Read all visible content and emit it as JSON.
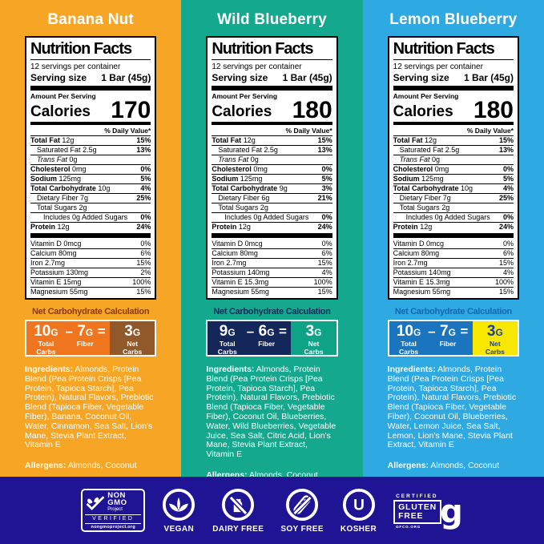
{
  "panels": [
    {
      "flavor": "Banana Nut",
      "colors": {
        "bg": "#F7A525",
        "nc_title": "#8A3A10",
        "nc_left": "#F0751F",
        "nc_right": "#91582A",
        "nc_right_text": "#FFFFFF"
      },
      "nutrition": {
        "title": "Nutrition Facts",
        "servings": "12 servings per container",
        "serving_size_label": "Serving size",
        "serving_size": "1 Bar (45g)",
        "amount_label": "Amount Per Serving",
        "calories_label": "Calories",
        "calories": "170",
        "daily_value_label": "% Daily Value*",
        "rows": [
          {
            "name": "Total Fat",
            "amount": "12g",
            "dv": "15%",
            "style": "bold"
          },
          {
            "name": "Saturated Fat",
            "amount": "2.5g",
            "dv": "13%",
            "style": "indent1"
          },
          {
            "name": "Trans Fat",
            "amount": "0g",
            "dv": "",
            "style": "indent1 italic"
          },
          {
            "name": "Cholesterol",
            "amount": "0mg",
            "dv": "0%",
            "style": "bold"
          },
          {
            "name": "Sodium",
            "amount": "125mg",
            "dv": "5%",
            "style": "bold"
          },
          {
            "name": "Total Carbohydrate",
            "amount": "10g",
            "dv": "4%",
            "style": "bold"
          },
          {
            "name": "Dietary Fiber",
            "amount": "7g",
            "dv": "25%",
            "style": "indent1"
          },
          {
            "name": "Total Sugars",
            "amount": "2g",
            "dv": "",
            "style": "indent1"
          },
          {
            "name": "Includes 0g Added Sugars",
            "amount": "",
            "dv": "0%",
            "style": "indent2"
          },
          {
            "name": "Protein",
            "amount": "12g",
            "dv": "24%",
            "style": "bold"
          }
        ],
        "micros": [
          {
            "name": "Vitamin D 0mcg",
            "dv": "0%"
          },
          {
            "name": "Calcium 80mg",
            "dv": "6%"
          },
          {
            "name": "Iron 2.7mg",
            "dv": "15%"
          },
          {
            "name": "Potassium 130mg",
            "dv": "2%"
          },
          {
            "name": "Vitamin E 15mg",
            "dv": "100%"
          },
          {
            "name": "Magnesium 55mg",
            "dv": "15%"
          }
        ]
      },
      "net_carbs": {
        "title": "Net Carbohydrate Calculation",
        "total_value": "10",
        "total_unit": "G",
        "total_label": "Total Carbs",
        "minus": "–",
        "fiber_value": "7",
        "fiber_unit": "G",
        "fiber_label": "Fiber",
        "equals": "=",
        "net_value": "3",
        "net_unit": "G",
        "net_label": "Net Carbs"
      },
      "ingredients_label": "Ingredients:",
      "ingredients": "Almonds, Protein Blend (Pea Protein Crisps [Pea Protein, Tapioca Starch], Pea Protein), Natural Flavors, Prebiotic Blend (Tapioca Fiber, Vegetable Fiber), Banana, Coconut Oil, Water, Cinnamon, Sea Salt, Lion's Mane, Stevia Plant Extract, Vitamin E",
      "allergens_label": "Allergens:",
      "allergens": "Almonds, Coconut"
    },
    {
      "flavor": "Wild Blueberry",
      "colors": {
        "bg": "#14A98E",
        "nc_title": "#13275B",
        "nc_left": "#13275B",
        "nc_right": "#0EA287",
        "nc_right_text": "#FFFFFF"
      },
      "nutrition": {
        "title": "Nutrition Facts",
        "servings": "12 servings per container",
        "serving_size_label": "Serving size",
        "serving_size": "1 Bar (45g)",
        "amount_label": "Amount Per Serving",
        "calories_label": "Calories",
        "calories": "180",
        "daily_value_label": "% Daily Value*",
        "rows": [
          {
            "name": "Total Fat",
            "amount": "12g",
            "dv": "15%",
            "style": "bold"
          },
          {
            "name": "Saturated Fat",
            "amount": "2.5g",
            "dv": "13%",
            "style": "indent1"
          },
          {
            "name": "Trans Fat",
            "amount": "0g",
            "dv": "",
            "style": "indent1 italic"
          },
          {
            "name": "Cholesterol",
            "amount": "0mg",
            "dv": "0%",
            "style": "bold"
          },
          {
            "name": "Sodium",
            "amount": "125mg",
            "dv": "5%",
            "style": "bold"
          },
          {
            "name": "Total Carbohydrate",
            "amount": "9g",
            "dv": "3%",
            "style": "bold"
          },
          {
            "name": "Dietary Fiber",
            "amount": "6g",
            "dv": "21%",
            "style": "indent1"
          },
          {
            "name": "Total Sugars",
            "amount": "2g",
            "dv": "",
            "style": "indent1"
          },
          {
            "name": "Includes 0g Added Sugars",
            "amount": "",
            "dv": "0%",
            "style": "indent2"
          },
          {
            "name": "Protein",
            "amount": "12g",
            "dv": "24%",
            "style": "bold"
          }
        ],
        "micros": [
          {
            "name": "Vitamin D 0mcg",
            "dv": "0%"
          },
          {
            "name": "Calcium 80mg",
            "dv": "6%"
          },
          {
            "name": "Iron 2.7mg",
            "dv": "15%"
          },
          {
            "name": "Potassium 140mg",
            "dv": "4%"
          },
          {
            "name": "Vitamin E 15.3mg",
            "dv": "100%"
          },
          {
            "name": "Magnesium 55mg",
            "dv": "15%"
          }
        ]
      },
      "net_carbs": {
        "title": "Net Carbohydrate Calculation",
        "total_value": "9",
        "total_unit": "G",
        "total_label": "Total Carbs",
        "minus": "–",
        "fiber_value": "6",
        "fiber_unit": "G",
        "fiber_label": "Fiber",
        "equals": "=",
        "net_value": "3",
        "net_unit": "G",
        "net_label": "Net Carbs"
      },
      "ingredients_label": "Ingredients:",
      "ingredients": "Almonds, Protein Blend (Pea Protein Crisps [Pea Protein, Tapioca Starch], Pea Protein), Natural Flavors, Prebiotic Blend (Tapioca Fiber, Vegetable Fiber), Coconut Oil, Blueberries, Water, Wild Blueberries, Vegetable Juice, Sea Salt, Citric Acid, Lion's Mane, Stevia Plant Extract, Vitamin E",
      "allergens_label": "Allergens:",
      "allergens": "Almonds, Coconut"
    },
    {
      "flavor": "Lemon Blueberry",
      "colors": {
        "bg": "#2FA9E1",
        "nc_title": "#1566B5",
        "nc_left": "#1B74BE",
        "nc_right": "#F8E800",
        "nc_right_text": "#1B3FA0"
      },
      "nutrition": {
        "title": "Nutrition Facts",
        "servings": "12 servings per container",
        "serving_size_label": "Serving size",
        "serving_size": "1 Bar (45g)",
        "amount_label": "Amount Per Serving",
        "calories_label": "Calories",
        "calories": "180",
        "daily_value_label": "% Daily Value*",
        "rows": [
          {
            "name": "Total Fat",
            "amount": "12g",
            "dv": "15%",
            "style": "bold"
          },
          {
            "name": "Saturated Fat",
            "amount": "2.5g",
            "dv": "13%",
            "style": "indent1"
          },
          {
            "name": "Trans Fat",
            "amount": "0g",
            "dv": "",
            "style": "indent1 italic"
          },
          {
            "name": "Cholesterol",
            "amount": "0mg",
            "dv": "0%",
            "style": "bold"
          },
          {
            "name": "Sodium",
            "amount": "125mg",
            "dv": "5%",
            "style": "bold"
          },
          {
            "name": "Total Carbohydrate",
            "amount": "10g",
            "dv": "4%",
            "style": "bold"
          },
          {
            "name": "Dietary Fiber",
            "amount": "7g",
            "dv": "25%",
            "style": "indent1"
          },
          {
            "name": "Total Sugars",
            "amount": "2g",
            "dv": "",
            "style": "indent1"
          },
          {
            "name": "Includes 0g Added Sugars",
            "amount": "",
            "dv": "0%",
            "style": "indent2"
          },
          {
            "name": "Protein",
            "amount": "12g",
            "dv": "24%",
            "style": "bold"
          }
        ],
        "micros": [
          {
            "name": "Vitamin D 0mcg",
            "dv": "0%"
          },
          {
            "name": "Calcium 80mg",
            "dv": "6%"
          },
          {
            "name": "Iron 2.7mg",
            "dv": "15%"
          },
          {
            "name": "Potassium 140mg",
            "dv": "4%"
          },
          {
            "name": "Vitamin E 15.3mg",
            "dv": "100%"
          },
          {
            "name": "Magnesium 55mg",
            "dv": "15%"
          }
        ]
      },
      "net_carbs": {
        "title": "Net Carbohydrate Calculation",
        "total_value": "10",
        "total_unit": "G",
        "total_label": "Total Carbs",
        "minus": "–",
        "fiber_value": "7",
        "fiber_unit": "G",
        "fiber_label": "Fiber",
        "equals": "=",
        "net_value": "3",
        "net_unit": "G",
        "net_label": "Net Carbs"
      },
      "ingredients_label": "Ingredients:",
      "ingredients": "Almonds, Protein Blend (Pea Protein Crisps [Pea Protein, Tapioca Starch], Pea Protein), Natural Flavors, Prebiotic Blend (Tapioca Fiber, Vegetable Fiber), Coconut Oil, Blueberries, Water, Lemon Juice, Sea Salt, Lemon, Lion's Mane, Stevia Plant Extract, Vitamin E",
      "allergens_label": "Allergens:",
      "allergens": "Almonds, Coconut"
    }
  ],
  "footer": {
    "bg": "#1F1493",
    "badges": {
      "non_gmo": {
        "line1": "NON",
        "line2": "GMO",
        "line3": "Project",
        "verified": "VERIFIED",
        "site": "nongmoproject.org"
      },
      "vegan": {
        "label": "VEGAN"
      },
      "dairy_free": {
        "label": "DAIRY FREE"
      },
      "soy_free": {
        "label": "SOY FREE"
      },
      "kosher": {
        "label": "KOSHER",
        "symbol": "U"
      },
      "gluten_free": {
        "certified": "CERTIFIED",
        "line1": "GLUTEN",
        "line2": "FREE",
        "glyph": "g",
        "site": "GFCO.ORG"
      }
    }
  }
}
